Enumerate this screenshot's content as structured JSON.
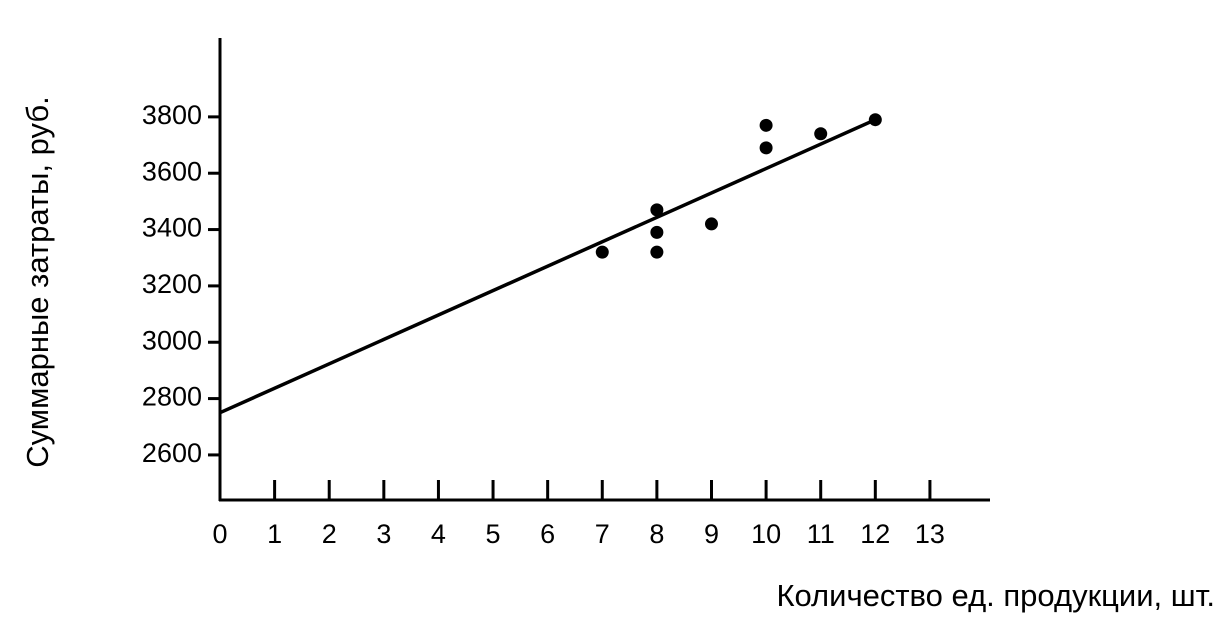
{
  "chart_data": {
    "type": "scatter",
    "x_label": "Количество ед. продукции, шт.",
    "y_label": "Суммарные затраты, руб.",
    "x": [
      7,
      8,
      8,
      8,
      9,
      10,
      10,
      11,
      12
    ],
    "y": [
      3320,
      3470,
      3390,
      3320,
      3420,
      3770,
      3690,
      3740,
      3790
    ],
    "trend_line": {
      "x": [
        0,
        12
      ],
      "y": [
        2750,
        3790
      ]
    },
    "color": "#000000",
    "xlim": [
      0,
      14.1
    ],
    "ylim": [
      2440,
      4080
    ],
    "xticks": [
      0,
      1,
      2,
      3,
      4,
      5,
      6,
      7,
      8,
      9,
      10,
      11,
      12,
      13
    ],
    "yticks": [
      2600,
      2800,
      3000,
      3200,
      3400,
      3600,
      3800
    ]
  }
}
